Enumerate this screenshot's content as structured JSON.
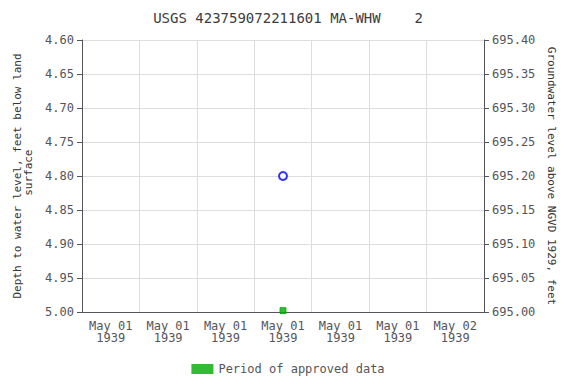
{
  "chart_data": {
    "type": "scatter",
    "title": "USGS 423759072211601 MA-WHW    2",
    "categories": [
      "May 01\n1939",
      "May 01\n1939",
      "May 01\n1939",
      "May 01\n1939",
      "May 01\n1939",
      "May 01\n1939",
      "May 02\n1939"
    ],
    "series": [
      {
        "color": "blue",
        "marker": "emptyCircle",
        "values": [
          null,
          null,
          null,
          4.8,
          null,
          null,
          null
        ]
      },
      {
        "name": "Period of approved data",
        "color": "#00aa00",
        "marker": "square",
        "values": [
          null,
          null,
          null,
          4.998,
          null,
          null,
          null
        ]
      }
    ],
    "ylabel": "Depth to water level, feet below land\n surface",
    "y2label": "Groundwater level above NGVD 1929, feet",
    "ylim": [
      5.0,
      4.6
    ],
    "yticks": [
      {
        "value": 4.6,
        "label": "4.60"
      },
      4.65,
      {
        "value": 4.7,
        "label": "4.70"
      },
      4.75,
      {
        "value": 4.8,
        "label": "4.80"
      },
      4.85,
      {
        "value": 4.9,
        "label": "4.90"
      },
      4.95,
      {
        "value": 5.0,
        "label": "5.00"
      }
    ],
    "y2lim": [
      695.0,
      695.4
    ],
    "y2ticks": [
      {
        "value": 695.4,
        "label": "695.40"
      },
      695.35,
      {
        "value": 695.3,
        "label": "695.30"
      },
      695.25,
      {
        "value": 695.2,
        "label": "695.20"
      },
      695.15,
      {
        "value": 695.1,
        "label": "695.10"
      },
      695.05,
      {
        "value": 695.0,
        "label": "695.00"
      }
    ],
    "grid": true,
    "legend": "bottom"
  }
}
